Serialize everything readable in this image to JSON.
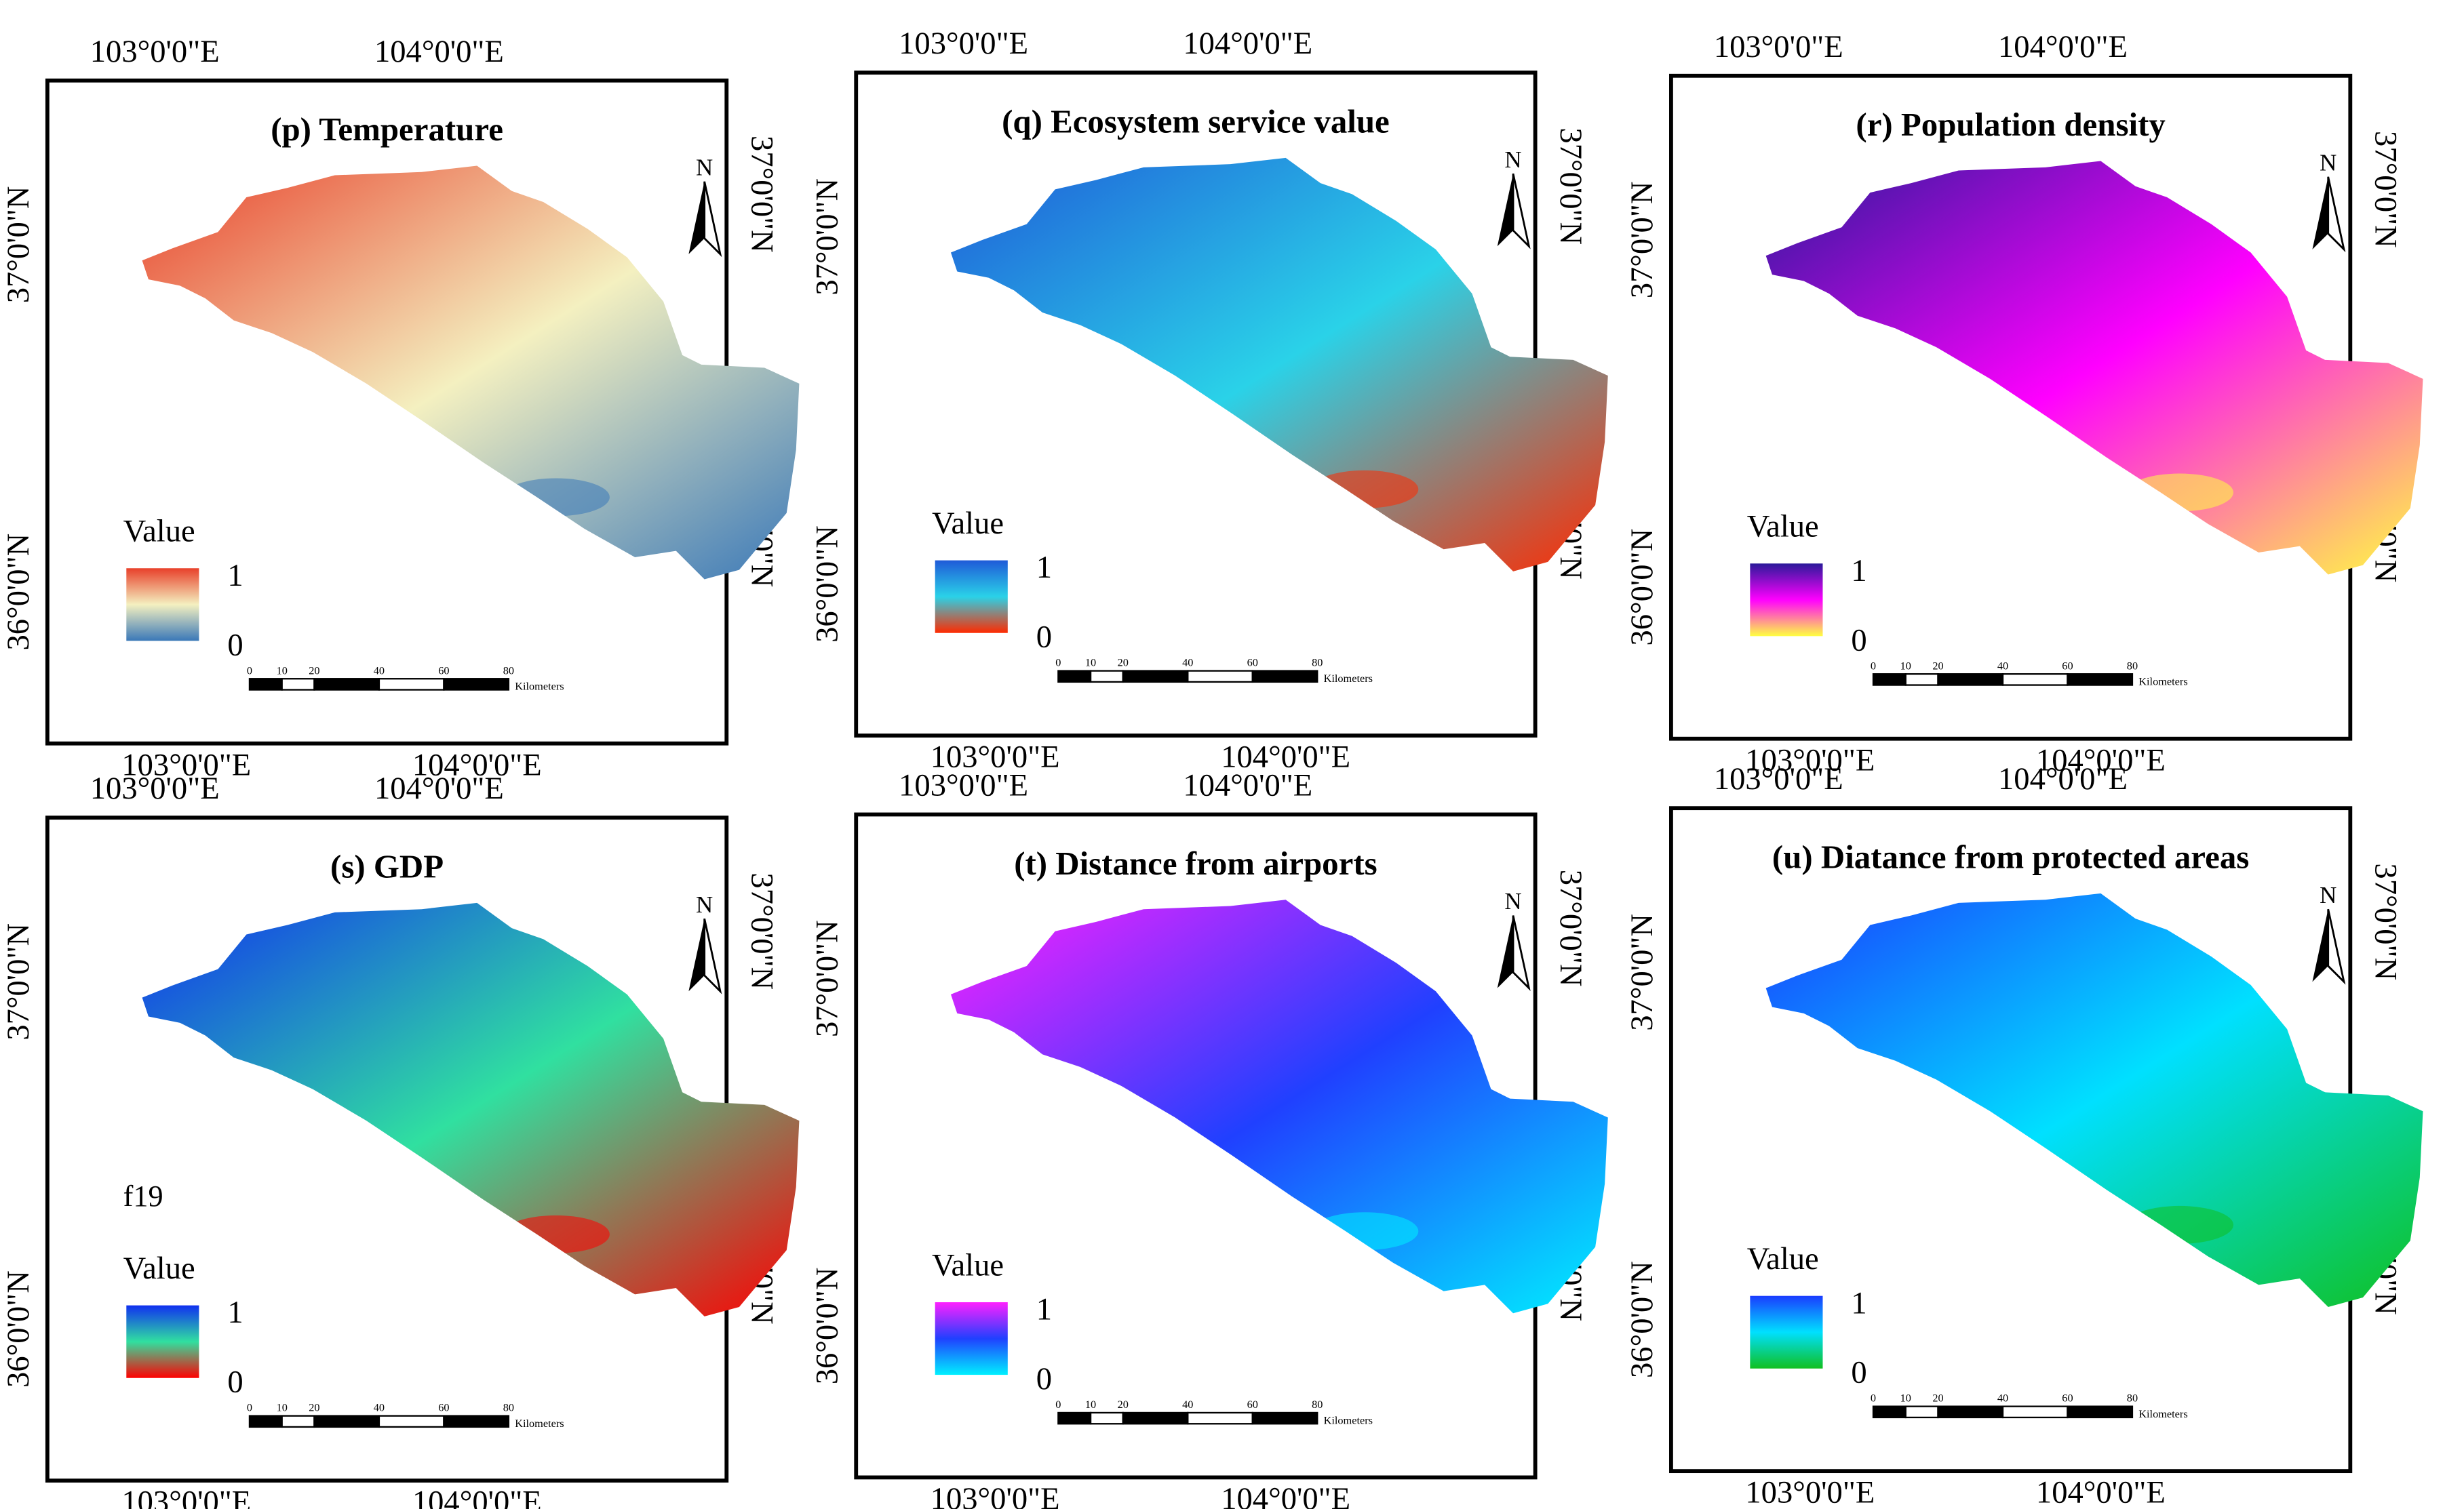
{
  "shared": {
    "lon_labels": [
      "103°0'0\"E",
      "104°0'0\"E"
    ],
    "lat_labels": [
      "37°0'0\"N",
      "36°0'0\"N"
    ],
    "north_letter": "N",
    "legend_title": "Value",
    "legend_max": "1",
    "legend_min": "0",
    "scale_ticks": [
      "0",
      "10",
      "20",
      "40",
      "60",
      "80"
    ],
    "scale_unit": "Kilometers"
  },
  "panels": [
    {
      "id": "p",
      "title": "(p) Temperature",
      "extra_label": "",
      "colors": {
        "high": "#e8402a",
        "mid": "#f4f0c0",
        "low": "#3a78b8"
      }
    },
    {
      "id": "q",
      "title": "(q) Ecosystem service value",
      "extra_label": "",
      "colors": {
        "high": "#1f5ad8",
        "mid": "#2ad2e8",
        "low": "#ff2a00"
      }
    },
    {
      "id": "r",
      "title": "(r) Population density",
      "extra_label": "",
      "colors": {
        "high": "#2a1a9a",
        "mid": "#ff00ff",
        "low": "#ffff40"
      }
    },
    {
      "id": "s",
      "title": "(s) GDP",
      "extra_label": "f19",
      "colors": {
        "high": "#1030f0",
        "mid": "#30e0a0",
        "low": "#ff0000"
      }
    },
    {
      "id": "t",
      "title": "(t) Distance from airports",
      "extra_label": "",
      "colors": {
        "high": "#ff20ff",
        "mid": "#2040ff",
        "low": "#00f0ff"
      }
    },
    {
      "id": "u",
      "title": "(u) Diatance from protected areas",
      "extra_label": "",
      "colors": {
        "high": "#1a3cff",
        "mid": "#00e0ff",
        "low": "#10c020"
      }
    }
  ]
}
